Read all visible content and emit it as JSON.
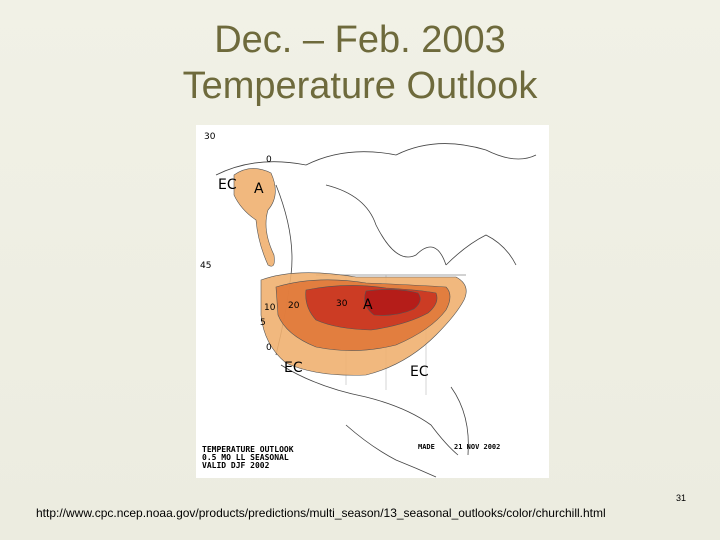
{
  "slide": {
    "title_line1": "Dec. – Feb. 2003",
    "title_line2": "Temperature Outlook",
    "url": "http://www.cpc.ncep.noaa.gov/products/predictions/multi_season/13_seasonal_outlooks/color/churchill.html",
    "slide_number": "31"
  },
  "map": {
    "lat_labels": [
      "30",
      "45"
    ],
    "region_labels": {
      "alaska_ec": "EC",
      "alaska_a": "A",
      "west_ec": "EC",
      "east_ec": "EC",
      "central_a": "A"
    },
    "contour_labels": {
      "c0_alaska": "0",
      "c10": "10",
      "c20": "20",
      "c30": "30",
      "c5": "5",
      "c0_south": "0"
    },
    "legend": {
      "line1": "TEMPERATURE OUTLOOK",
      "line2": "0.5 MO LL SEASONAL",
      "line3": "VALID DJF 2002"
    },
    "made_label": "MADE",
    "made_date": "21 NOV 2002",
    "colors": {
      "light": "#f0b070",
      "medium": "#e07838",
      "dark": "#c83020",
      "darkest": "#b01818"
    }
  }
}
